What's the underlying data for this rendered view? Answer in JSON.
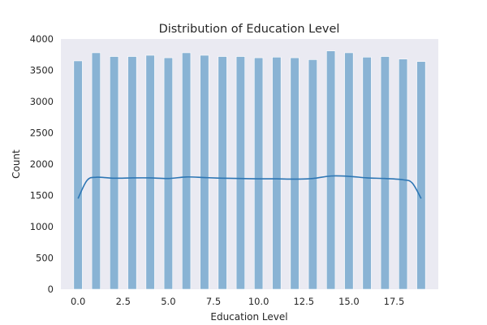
{
  "chart_data": {
    "type": "bar",
    "title": "Distribution of Education Level",
    "xlabel": "Education Level",
    "ylabel": "Count",
    "xlim": [
      -0.95,
      19.95
    ],
    "ylim": [
      0,
      4000
    ],
    "x_ticks": [
      0.0,
      2.5,
      5.0,
      7.5,
      10.0,
      12.5,
      15.0,
      17.5
    ],
    "x_tick_labels": [
      "0.0",
      "2.5",
      "5.0",
      "7.5",
      "10.0",
      "12.5",
      "15.0",
      "17.5"
    ],
    "y_ticks": [
      0,
      500,
      1000,
      1500,
      2000,
      2500,
      3000,
      3500,
      4000
    ],
    "y_tick_labels": [
      "0",
      "500",
      "1000",
      "1500",
      "2000",
      "2500",
      "3000",
      "3500",
      "4000"
    ],
    "bar_width": 0.475,
    "grid": false,
    "bars": [
      {
        "x": 0.0,
        "value": 3650
      },
      {
        "x": 1.0,
        "value": 3780
      },
      {
        "x": 2.0,
        "value": 3720
      },
      {
        "x": 3.0,
        "value": 3720
      },
      {
        "x": 4.0,
        "value": 3740
      },
      {
        "x": 5.0,
        "value": 3700
      },
      {
        "x": 6.0,
        "value": 3780
      },
      {
        "x": 7.0,
        "value": 3740
      },
      {
        "x": 8.0,
        "value": 3720
      },
      {
        "x": 9.0,
        "value": 3720
      },
      {
        "x": 10.0,
        "value": 3700
      },
      {
        "x": 11.0,
        "value": 3710
      },
      {
        "x": 12.0,
        "value": 3700
      },
      {
        "x": 13.0,
        "value": 3670
      },
      {
        "x": 14.0,
        "value": 3810
      },
      {
        "x": 15.0,
        "value": 3780
      },
      {
        "x": 16.0,
        "value": 3710
      },
      {
        "x": 17.0,
        "value": 3720
      },
      {
        "x": 18.0,
        "value": 3680
      },
      {
        "x": 19.0,
        "value": 3640
      }
    ],
    "kde": {
      "x": [
        0.0,
        0.5,
        1.0,
        2.0,
        3.0,
        4.0,
        5.0,
        6.0,
        7.0,
        8.0,
        9.0,
        10.0,
        11.0,
        12.0,
        13.0,
        14.0,
        15.0,
        16.0,
        17.0,
        18.0,
        18.5,
        19.0
      ],
      "y": [
        1450,
        1740,
        1790,
        1775,
        1780,
        1780,
        1770,
        1795,
        1785,
        1775,
        1770,
        1765,
        1765,
        1760,
        1770,
        1810,
        1805,
        1780,
        1770,
        1750,
        1700,
        1450
      ]
    },
    "colors": {
      "background": "#eaeaf2",
      "bar_fill": "#89b3d4",
      "bar_edge": "#ffffff",
      "kde_line": "#2d76b4",
      "text": "#262626"
    }
  }
}
